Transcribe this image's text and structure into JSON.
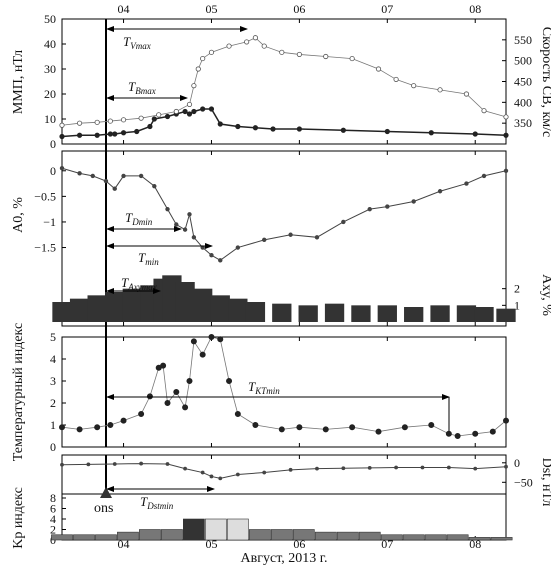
{
  "figure": {
    "xlabel": "Август, 2013 г.",
    "x_tick_labels": [
      "04",
      "05",
      "06",
      "07",
      "08"
    ],
    "onset_label": "ons"
  },
  "panels": [
    {
      "id": "imf",
      "left_label": "ММП, нТл",
      "right_label": "Скорость СВ, км/с"
    },
    {
      "id": "a0",
      "left_label": "A0, %",
      "right_label": "Axy, %"
    },
    {
      "id": "kt",
      "left_label": "Температурный индекс"
    },
    {
      "id": "dst",
      "left_label": "Kp индекс",
      "right_label": "Dst, нТл"
    }
  ],
  "annotations": [
    {
      "id": "tv",
      "label": "T",
      "sub": "Vmax"
    },
    {
      "id": "tb",
      "label": "T",
      "sub": "Bmax"
    },
    {
      "id": "td",
      "label": "T",
      "sub": "Dmin"
    },
    {
      "id": "tmin",
      "label": "T",
      "sub": "min"
    },
    {
      "id": "taxy",
      "label": "T",
      "sub": "Axymax"
    },
    {
      "id": "tkt",
      "label": "T",
      "sub": "KTmin"
    },
    {
      "id": "tdst",
      "label": "T",
      "sub": "Dstmin"
    }
  ],
  "chart_data": [
    {
      "type": "line",
      "title": "",
      "xlabel": "Август, 2013 г.",
      "ylabel": "ММП, нТл",
      "y2label": "Скорость СВ, км/с",
      "ylim": [
        0,
        50
      ],
      "y2lim": [
        300,
        600
      ],
      "yticks": [
        0,
        10,
        20,
        30,
        40,
        50
      ],
      "y2ticks": [
        350,
        400,
        450,
        500,
        550
      ],
      "x_range": [
        3.3,
        8.35
      ],
      "series": [
        {
          "x": [
            3.3,
            3.5,
            3.7,
            3.85,
            3.9,
            4.0,
            4.15,
            4.3,
            4.35,
            4.5,
            4.6,
            4.7,
            4.75,
            4.8,
            4.9,
            5.0,
            5.1,
            5.3,
            5.5,
            5.7,
            6.0,
            6.5,
            7.0,
            7.5,
            8.0,
            8.35
          ],
          "y": [
            3,
            3.5,
            3.5,
            4,
            4,
            4.5,
            5,
            7,
            10,
            11,
            12,
            13,
            12,
            13,
            14,
            14,
            8,
            7,
            6.5,
            6,
            6,
            5.5,
            5,
            4.5,
            4,
            3.5
          ]
        },
        {
          "x": [
            3.3,
            3.5,
            3.7,
            3.85,
            4.0,
            4.2,
            4.4,
            4.6,
            4.75,
            4.8,
            4.85,
            4.9,
            5.0,
            5.2,
            5.4,
            5.5,
            5.6,
            5.8,
            6.0,
            6.3,
            6.6,
            6.9,
            7.1,
            7.3,
            7.6,
            7.9,
            8.1,
            8.35
          ],
          "y": [
            345,
            350,
            352,
            355,
            358,
            362,
            370,
            378,
            395,
            440,
            480,
            505,
            520,
            535,
            545,
            555,
            535,
            520,
            515,
            510,
            505,
            480,
            455,
            440,
            430,
            420,
            380,
            365
          ]
        }
      ]
    },
    {
      "type": "line",
      "title": "",
      "ylabel": "A0, %",
      "y2label": "Axy, %",
      "yticks": [
        0,
        -0.5,
        -1.0,
        -1.5
      ],
      "ylim": [
        -1.9,
        0.25
      ],
      "y2ticks": [
        1,
        2
      ],
      "y2lim": [
        0,
        6
      ],
      "x_range": [
        3.3,
        8.35
      ],
      "series": [
        {
          "x": [
            3.3,
            3.5,
            3.65,
            3.8,
            3.9,
            4.0,
            4.2,
            4.35,
            4.5,
            4.6,
            4.7,
            4.75,
            4.8,
            4.9,
            5.0,
            5.1,
            5.3,
            5.6,
            5.9,
            6.2,
            6.5,
            6.8,
            7.0,
            7.3,
            7.6,
            7.9,
            8.1,
            8.35
          ],
          "y": [
            0.05,
            -0.05,
            -0.1,
            -0.2,
            -0.35,
            -0.1,
            -0.1,
            -0.3,
            -0.75,
            -1.05,
            -1.15,
            -0.85,
            -1.3,
            -1.5,
            -1.65,
            -1.75,
            -1.5,
            -1.35,
            -1.25,
            -1.3,
            -1.0,
            -0.75,
            -0.7,
            -0.6,
            -0.4,
            -0.25,
            -0.1,
            0
          ]
        },
        {
          "x": [
            3.3,
            3.5,
            3.7,
            3.9,
            4.1,
            4.3,
            4.45,
            4.55,
            4.7,
            4.9,
            5.1,
            5.3,
            5.5,
            5.8,
            6.1,
            6.4,
            6.7,
            7.0,
            7.3,
            7.6,
            7.9,
            8.1,
            8.35
          ],
          "y": [
            0.6,
            0.7,
            0.8,
            0.9,
            1.0,
            1.1,
            1.3,
            1.4,
            1.2,
            1.0,
            0.8,
            0.7,
            0.6,
            0.55,
            0.5,
            0.55,
            0.5,
            0.5,
            0.45,
            0.5,
            0.5,
            0.45,
            0.4
          ]
        }
      ]
    },
    {
      "type": "scatter",
      "title": "",
      "ylabel": "Температурный индекс",
      "ylim": [
        0,
        5
      ],
      "yticks": [
        0,
        1,
        2,
        3,
        4,
        5
      ],
      "x_range": [
        3.3,
        8.35
      ],
      "series": [
        {
          "x": [
            3.3,
            3.5,
            3.7,
            3.85,
            4.0,
            4.2,
            4.3,
            4.4,
            4.45,
            4.5,
            4.6,
            4.7,
            4.75,
            4.8,
            4.9,
            5.0,
            5.1,
            5.2,
            5.3,
            5.5,
            5.8,
            6.0,
            6.3,
            6.6,
            6.9,
            7.2,
            7.5,
            7.7,
            7.8,
            8.0,
            8.2,
            8.35
          ],
          "y": [
            0.9,
            0.8,
            0.9,
            1.0,
            1.2,
            1.5,
            2.3,
            3.6,
            3.7,
            2.0,
            2.5,
            1.8,
            3.0,
            4.8,
            4.2,
            5.0,
            4.9,
            3.0,
            1.5,
            1.0,
            0.8,
            0.9,
            0.8,
            0.9,
            0.7,
            0.9,
            1.0,
            0.6,
            0.5,
            0.6,
            0.7,
            1.2
          ]
        }
      ]
    },
    {
      "type": "line",
      "title": "",
      "ylabel": "Kp индекс",
      "y2label": "Dst, нТл",
      "y2ticks": [
        0,
        -50
      ],
      "y2lim": [
        -80,
        20
      ],
      "yticks": [
        0,
        2,
        4,
        6,
        8
      ],
      "ylim": [
        0,
        8
      ],
      "x_range": [
        3.3,
        8.35
      ],
      "series": [
        {
          "x": [
            3.3,
            3.6,
            3.9,
            4.2,
            4.5,
            4.7,
            4.9,
            5.0,
            5.1,
            5.3,
            5.6,
            5.9,
            6.2,
            6.5,
            6.8,
            7.1,
            7.4,
            7.7,
            8.0,
            8.35
          ],
          "y": [
            -5,
            -4,
            -3,
            -2,
            -3,
            -15,
            -25,
            -35,
            -40,
            -30,
            -25,
            -18,
            -15,
            -14,
            -13,
            -12,
            -12,
            -12,
            -15,
            -10
          ]
        },
        {
          "x": [
            3.3,
            3.55,
            3.8,
            4.05,
            4.3,
            4.55,
            4.8,
            5.05,
            5.3,
            5.55,
            5.8,
            6.05,
            6.3,
            6.55,
            6.8,
            7.05,
            7.3,
            7.55,
            7.8,
            8.05,
            8.3
          ],
          "y": [
            1,
            1,
            1,
            1.5,
            2,
            2,
            4,
            4,
            4,
            2,
            2,
            2,
            1.5,
            1.5,
            1.5,
            1,
            1,
            1,
            1,
            0.5,
            0.5
          ]
        }
      ]
    }
  ]
}
